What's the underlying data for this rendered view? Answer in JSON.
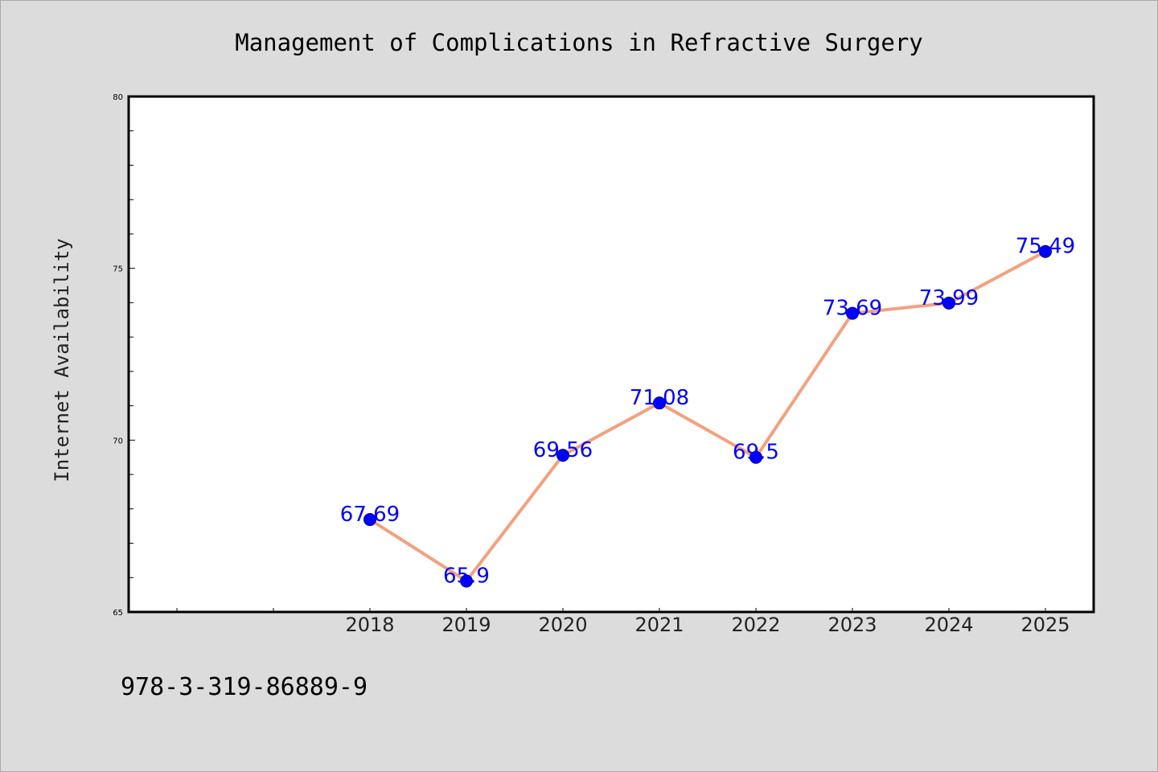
{
  "chart_data": {
    "type": "line",
    "title": "Management of Complications in Refractive Surgery",
    "xlabel": "",
    "ylabel": "Internet Availability",
    "categories": [
      "2018",
      "2019",
      "2020",
      "2021",
      "2022",
      "2023",
      "2024",
      "2025"
    ],
    "series": [
      {
        "values": [
          67.69,
          65.9,
          69.56,
          71.08,
          69.5,
          73.69,
          73.99,
          75.49
        ],
        "labels": [
          "67.69",
          "65.9",
          "69.56",
          "71.08",
          "69.5",
          "73.69",
          "73.99",
          "75.49"
        ]
      }
    ],
    "ylim": [
      65,
      80
    ],
    "yticks": [
      "65",
      "70",
      "75",
      "80"
    ],
    "grid": false,
    "legend": "none",
    "colors": {
      "line": "#f4a07e",
      "marker": "#0000ff",
      "label": "#0000ff",
      "background": "#dcdcdc",
      "plot_bg": "#ffffff"
    }
  },
  "footer": {
    "text": "978-3-319-86889-9"
  }
}
